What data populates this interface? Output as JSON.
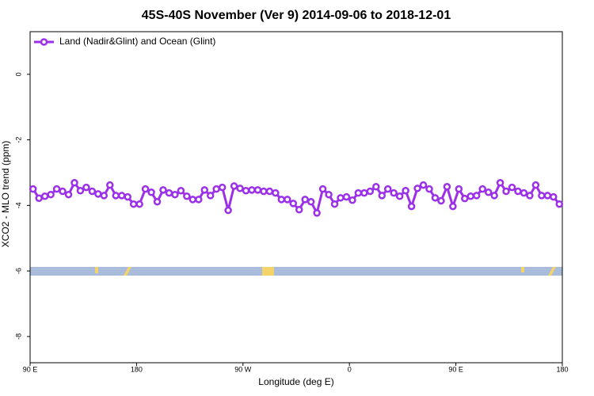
{
  "chart_data": {
    "type": "line",
    "title": "45S-40S November (Ver 9)   2014-09-06 to 2018-12-01",
    "xlabel": "Longitude (deg E)",
    "ylabel": "XCO2 - MLO trend (ppm)",
    "xlim": [
      90,
      540
    ],
    "ylim": [
      -8.8,
      1.3
    ],
    "xticks": [
      {
        "value": 90,
        "label": "90 E"
      },
      180,
      {
        "value": 270,
        "label": "90 W"
      },
      {
        "value": 360,
        "label": "0"
      },
      {
        "value": 450,
        "label": "90 E"
      },
      {
        "value": 540,
        "label": "180"
      }
    ],
    "yticks": [
      0,
      -2,
      -4,
      -6,
      -8
    ],
    "legend": "top-left",
    "x": [
      92.5,
      97.5,
      102.5,
      107.5,
      112.5,
      117.5,
      122.5,
      127.5,
      132.5,
      137.5,
      142.5,
      147.5,
      152.5,
      157.5,
      162.5,
      167.5,
      172.5,
      177.5,
      182.5,
      187.5,
      192.5,
      197.5,
      202.5,
      207.5,
      212.5,
      217.5,
      222.5,
      227.5,
      232.5,
      237.5,
      242.5,
      247.5,
      252.5,
      257.5,
      262.5,
      267.5,
      272.5,
      277.5,
      282.5,
      287.5,
      292.5,
      297.5,
      302.5,
      307.5,
      312.5,
      317.5,
      322.5,
      327.5,
      332.5,
      337.5,
      342.5,
      347.5,
      352.5,
      357.5,
      362.5,
      367.5,
      372.5,
      377.5,
      382.5,
      387.5,
      392.5,
      397.5,
      402.5,
      407.5,
      412.5,
      417.5,
      422.5,
      427.5,
      432.5,
      437.5,
      442.5,
      447.5,
      452.5,
      457.5,
      462.5,
      467.5,
      472.5,
      477.5,
      482.5,
      487.5,
      492.5,
      497.5,
      502.5,
      507.5,
      512.5,
      517.5,
      522.5,
      527.5,
      532.5,
      537.5
    ],
    "series": [
      {
        "name": "Land (Nadir&Glint) and Ocean (Glint)",
        "color": "#9b30e8",
        "values": [
          -3.5,
          -3.78,
          -3.72,
          -3.67,
          -3.5,
          -3.57,
          -3.67,
          -3.31,
          -3.55,
          -3.45,
          -3.57,
          -3.65,
          -3.7,
          -3.38,
          -3.7,
          -3.7,
          -3.74,
          -3.96,
          -3.96,
          -3.5,
          -3.6,
          -3.89,
          -3.53,
          -3.62,
          -3.67,
          -3.55,
          -3.72,
          -3.82,
          -3.82,
          -3.53,
          -3.7,
          -3.5,
          -3.45,
          -4.15,
          -3.41,
          -3.48,
          -3.55,
          -3.53,
          -3.53,
          -3.57,
          -3.57,
          -3.62,
          -3.82,
          -3.82,
          -3.94,
          -4.13,
          -3.82,
          -3.89,
          -4.23,
          -3.5,
          -3.67,
          -3.96,
          -3.77,
          -3.74,
          -3.84,
          -3.62,
          -3.62,
          -3.57,
          -3.43,
          -3.7,
          -3.5,
          -3.62,
          -3.72,
          -3.55,
          -4.03,
          -3.48,
          -3.38,
          -3.5,
          -3.77,
          -3.86,
          -3.43,
          -4.03,
          -3.5,
          -3.79,
          -3.72,
          -3.7,
          -3.5,
          -3.6,
          -3.7,
          -3.31,
          -3.57,
          -3.45,
          -3.57,
          -3.62,
          -3.7,
          -3.38,
          -3.7,
          -3.7,
          -3.74,
          -3.96
        ]
      }
    ]
  }
}
